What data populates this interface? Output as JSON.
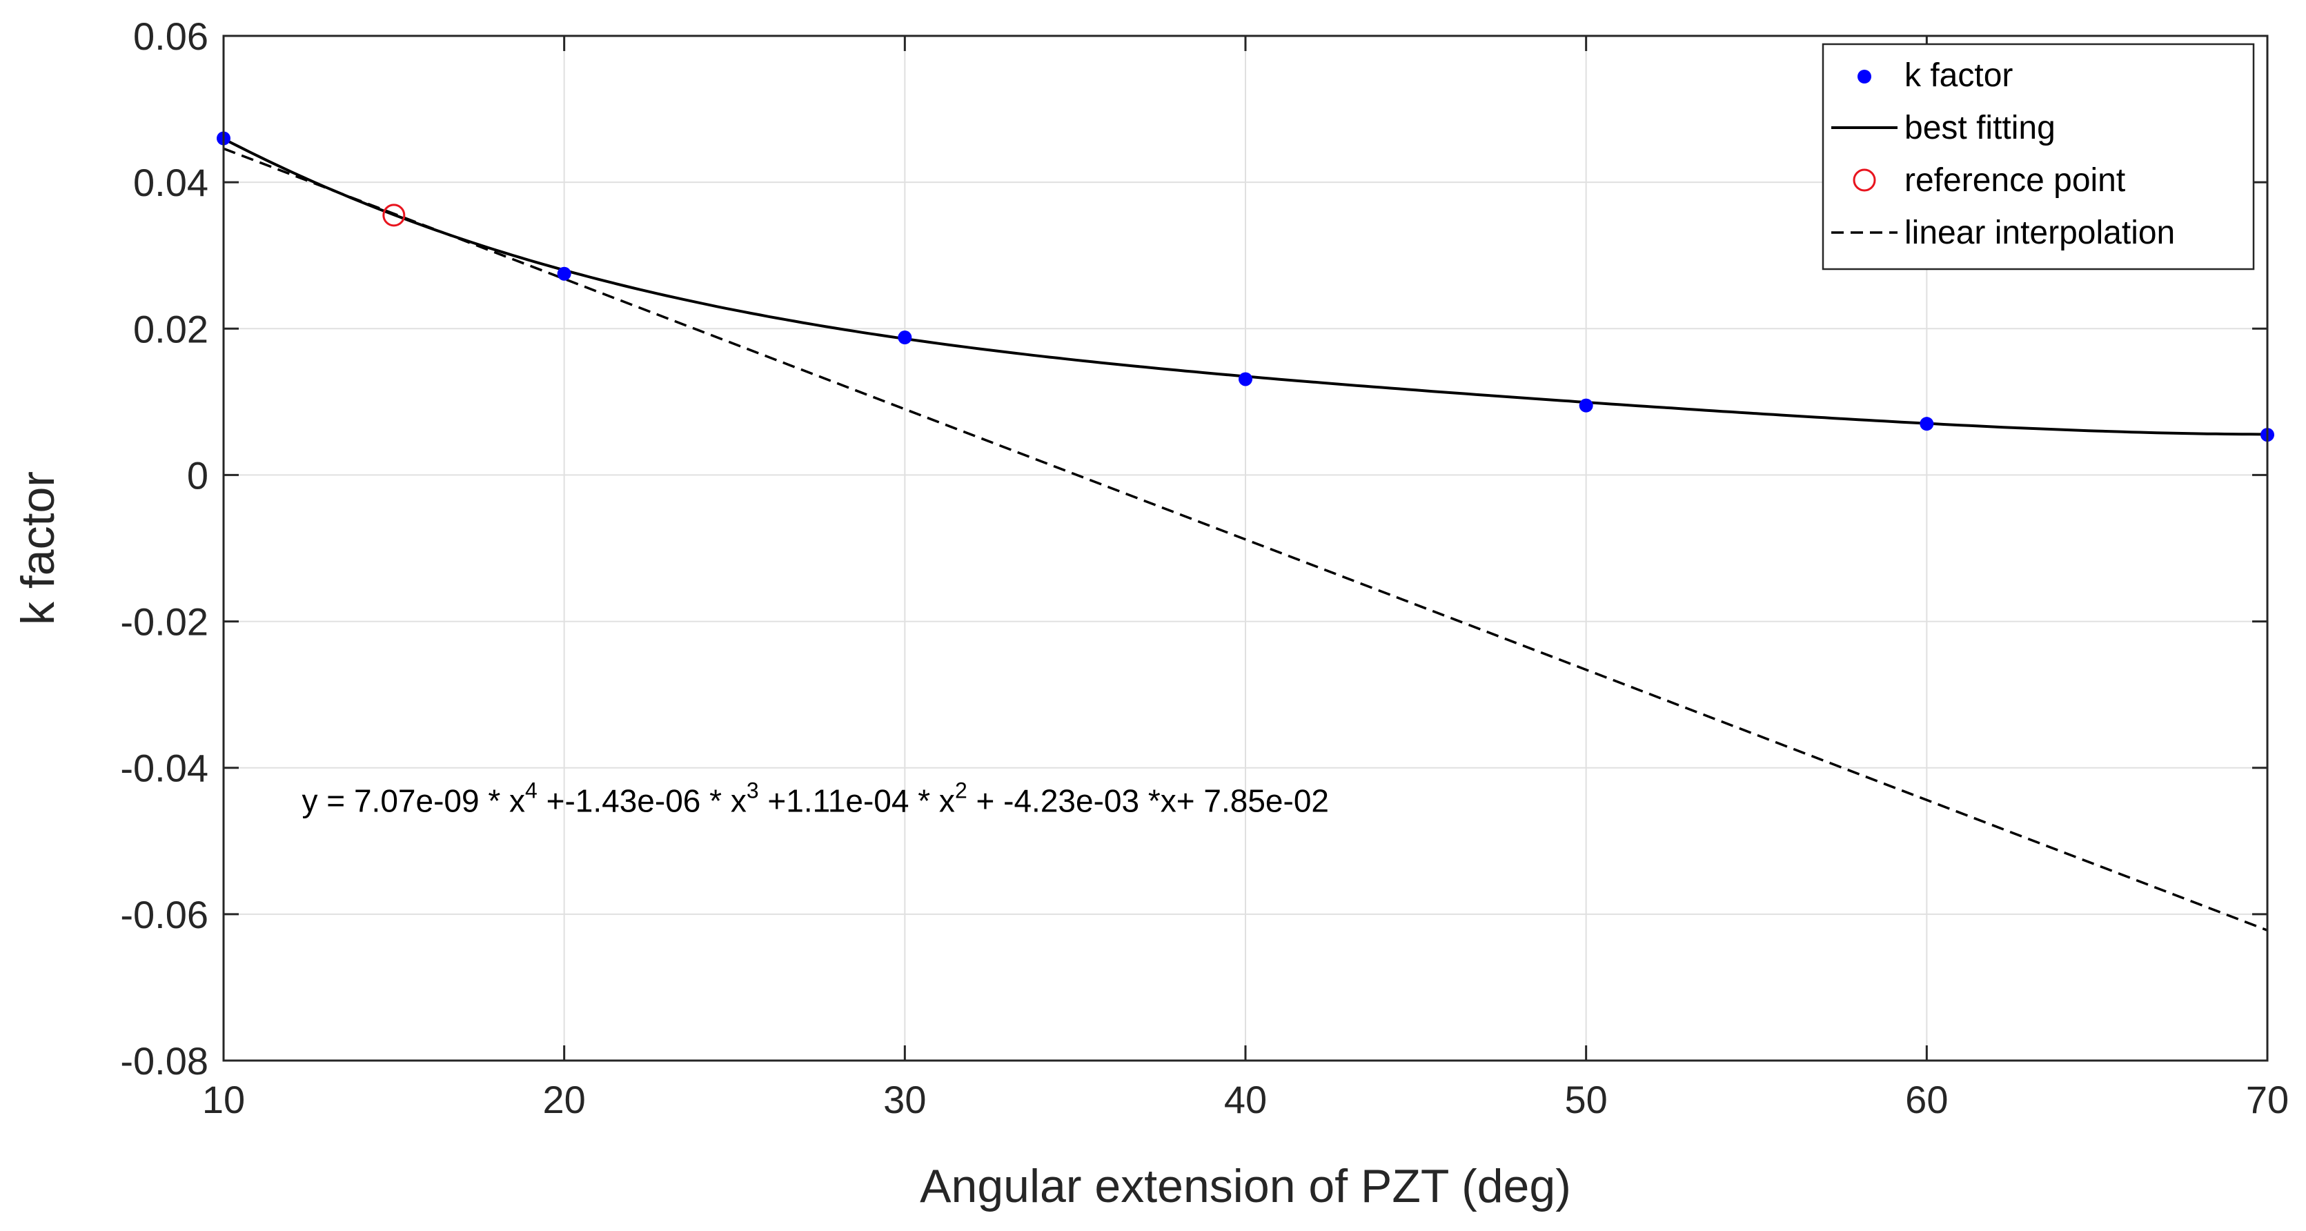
{
  "chart_data": {
    "type": "line",
    "title": "",
    "xlabel": "Angular extension of PZT (deg)",
    "ylabel": "k factor",
    "xlim": [
      10,
      70
    ],
    "ylim": [
      -0.08,
      0.06
    ],
    "xticks": [
      10,
      20,
      30,
      40,
      50,
      60,
      70
    ],
    "xtick_labels": [
      "10",
      "20",
      "30",
      "40",
      "50",
      "60",
      "70"
    ],
    "yticks": [
      -0.08,
      -0.06,
      -0.04,
      -0.02,
      0,
      0.02,
      0.04,
      0.06
    ],
    "ytick_labels": [
      "-0.08",
      "-0.06",
      "-0.04",
      "-0.02",
      "0",
      "0.02",
      "0.04",
      "0.06"
    ],
    "grid": true,
    "legend_position": "top-right",
    "series": [
      {
        "name": "k factor",
        "kind": "markers",
        "color": "#0000ff",
        "x": [
          10,
          20,
          30,
          40,
          50,
          60,
          70
        ],
        "y": [
          0.046,
          0.0275,
          0.0188,
          0.0131,
          0.0095,
          0.007,
          0.0055
        ]
      },
      {
        "name": "best fitting",
        "kind": "polynomial",
        "color": "#000000",
        "line_style": "solid",
        "coefficients": [
          7.07e-09,
          -1.43e-06,
          0.000111,
          -0.00423,
          0.0785
        ],
        "x_range": [
          10,
          70
        ]
      },
      {
        "name": "reference point",
        "kind": "open-circle",
        "color": "#e8141e",
        "x": [
          15
        ],
        "y": [
          0.0355
        ]
      },
      {
        "name": "linear interpolation",
        "kind": "line",
        "color": "#000000",
        "line_style": "dashed",
        "x": [
          10,
          70
        ],
        "y": [
          0.0446,
          -0.0622
        ]
      }
    ],
    "annotation": {
      "parts": [
        {
          "t": "y = 7.07e-09 * x"
        },
        {
          "t": "4",
          "sup": true
        },
        {
          "t": " +-1.43e-06 * x"
        },
        {
          "t": "3",
          "sup": true
        },
        {
          "t": " +1.11e-04 * x"
        },
        {
          "t": "2",
          "sup": true
        },
        {
          "t": " + -4.23e-03 *x+ 7.85e-02"
        }
      ],
      "anchor_data": [
        12.3,
        -0.046
      ]
    }
  }
}
